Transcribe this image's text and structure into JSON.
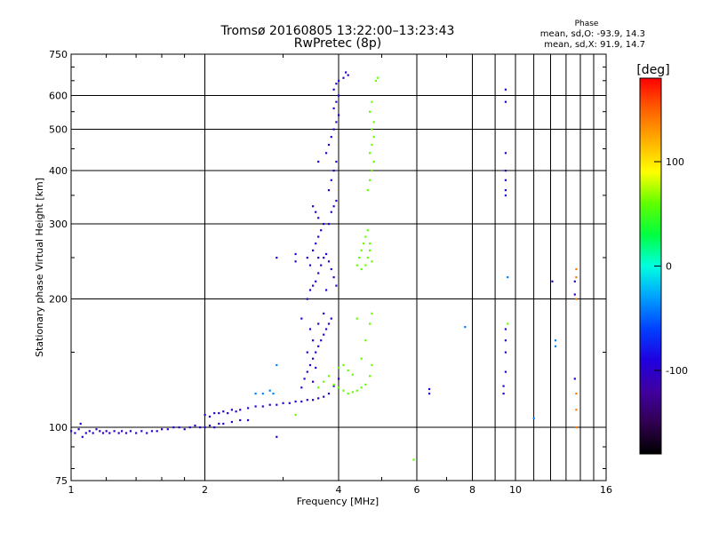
{
  "chart_data": {
    "type": "scatter",
    "title": "Tromsø 20160805 13:22:00–13:23:43",
    "subtitle": "RwPretec (8p)",
    "xlabel": "Frequency [MHz]",
    "ylabel": "Stationary phase Virtual Height [km]",
    "x_scale": "log",
    "y_scale": "log",
    "xlim": [
      1,
      16
    ],
    "ylim": [
      75,
      750
    ],
    "x_ticks": [
      1,
      2,
      4,
      6,
      8,
      10,
      16
    ],
    "x_minor_ticks": [
      9,
      11,
      12,
      13,
      14,
      15
    ],
    "y_ticks": [
      75,
      100,
      200,
      300,
      400,
      500,
      600,
      750
    ],
    "grid": true,
    "phase_stats": {
      "header": "Phase",
      "line_o": "mean, sd,O: -93.9, 14.3",
      "line_x": "mean, sd,X:  91.9, 14.7"
    },
    "colorbar": {
      "label": "[deg]",
      "range": [
        -180,
        180
      ],
      "ticks": [
        -100,
        0,
        100
      ],
      "colors": [
        "#000000",
        "#300050",
        "#4000a0",
        "#2000e0",
        "#0040ff",
        "#00a0ff",
        "#00ffe0",
        "#00ff40",
        "#60ff00",
        "#ffff00",
        "#ffb000",
        "#ff6000",
        "#ff0000"
      ]
    },
    "series": [
      {
        "phase": -100,
        "points": [
          [
            1.0,
            98
          ],
          [
            1.02,
            97
          ],
          [
            1.04,
            99
          ],
          [
            1.05,
            102
          ],
          [
            1.06,
            95
          ],
          [
            1.08,
            97
          ],
          [
            1.1,
            98
          ],
          [
            1.12,
            97
          ],
          [
            1.14,
            99
          ],
          [
            1.16,
            98
          ],
          [
            1.18,
            97
          ],
          [
            1.2,
            98
          ],
          [
            1.22,
            97
          ],
          [
            1.25,
            98
          ],
          [
            1.28,
            97
          ],
          [
            1.3,
            98
          ],
          [
            1.33,
            97
          ],
          [
            1.36,
            98
          ],
          [
            1.4,
            97
          ],
          [
            1.44,
            98
          ],
          [
            1.48,
            97
          ],
          [
            1.52,
            98
          ],
          [
            1.56,
            98
          ],
          [
            1.6,
            99
          ],
          [
            1.65,
            99
          ],
          [
            1.7,
            100
          ],
          [
            1.75,
            100
          ],
          [
            1.8,
            99
          ],
          [
            1.85,
            100
          ],
          [
            1.9,
            101
          ],
          [
            1.95,
            100
          ],
          [
            2.0,
            100
          ],
          [
            2.05,
            101
          ],
          [
            2.1,
            100
          ],
          [
            2.15,
            102
          ],
          [
            2.2,
            102
          ],
          [
            2.3,
            103
          ],
          [
            2.4,
            104
          ],
          [
            2.5,
            104
          ],
          [
            2.0,
            107
          ],
          [
            2.05,
            106
          ],
          [
            2.1,
            108
          ],
          [
            2.15,
            108
          ],
          [
            2.2,
            109
          ],
          [
            2.25,
            108
          ],
          [
            2.3,
            110
          ],
          [
            2.35,
            109
          ],
          [
            2.4,
            110
          ],
          [
            2.5,
            111
          ],
          [
            2.6,
            112
          ],
          [
            2.7,
            112
          ],
          [
            2.8,
            113
          ],
          [
            2.9,
            113
          ],
          [
            3.0,
            114
          ],
          [
            3.1,
            114
          ],
          [
            3.2,
            115
          ],
          [
            3.3,
            115
          ],
          [
            3.4,
            116
          ],
          [
            3.5,
            116
          ],
          [
            3.6,
            117
          ],
          [
            3.7,
            118
          ],
          [
            3.8,
            120
          ],
          [
            3.9,
            125
          ],
          [
            4.0,
            130
          ],
          [
            3.3,
            124
          ],
          [
            3.35,
            130
          ],
          [
            3.4,
            135
          ],
          [
            3.45,
            140
          ],
          [
            3.5,
            145
          ],
          [
            3.55,
            150
          ],
          [
            3.6,
            155
          ],
          [
            3.65,
            160
          ],
          [
            3.7,
            165
          ],
          [
            3.75,
            170
          ],
          [
            3.8,
            175
          ],
          [
            3.85,
            180
          ],
          [
            3.4,
            150
          ],
          [
            3.5,
            160
          ],
          [
            3.45,
            170
          ],
          [
            3.3,
            180
          ],
          [
            3.6,
            175
          ],
          [
            3.55,
            138
          ],
          [
            3.5,
            128
          ],
          [
            3.7,
            185
          ],
          [
            3.4,
            200
          ],
          [
            3.45,
            210
          ],
          [
            3.5,
            215
          ],
          [
            3.55,
            220
          ],
          [
            3.6,
            230
          ],
          [
            3.65,
            240
          ],
          [
            3.7,
            250
          ],
          [
            3.75,
            255
          ],
          [
            3.8,
            245
          ],
          [
            3.85,
            235
          ],
          [
            3.9,
            225
          ],
          [
            3.95,
            215
          ],
          [
            3.5,
            260
          ],
          [
            3.55,
            270
          ],
          [
            3.6,
            280
          ],
          [
            3.65,
            290
          ],
          [
            3.7,
            300
          ],
          [
            3.6,
            310
          ],
          [
            3.55,
            320
          ],
          [
            3.5,
            330
          ],
          [
            3.6,
            250
          ],
          [
            3.4,
            250
          ],
          [
            3.45,
            240
          ],
          [
            3.75,
            210
          ],
          [
            3.8,
            300
          ],
          [
            3.85,
            320
          ],
          [
            3.9,
            330
          ],
          [
            3.95,
            340
          ],
          [
            3.8,
            360
          ],
          [
            3.85,
            380
          ],
          [
            3.9,
            400
          ],
          [
            3.95,
            420
          ],
          [
            3.75,
            440
          ],
          [
            3.8,
            460
          ],
          [
            3.85,
            480
          ],
          [
            3.9,
            500
          ],
          [
            3.95,
            520
          ],
          [
            4.0,
            540
          ],
          [
            3.9,
            560
          ],
          [
            3.95,
            580
          ],
          [
            4.0,
            600
          ],
          [
            3.9,
            620
          ],
          [
            3.95,
            640
          ],
          [
            4.0,
            650
          ],
          [
            4.1,
            660
          ],
          [
            4.2,
            670
          ],
          [
            4.15,
            680
          ],
          [
            3.6,
            420
          ],
          [
            9.5,
            620
          ],
          [
            9.5,
            580
          ],
          [
            9.5,
            440
          ],
          [
            9.5,
            400
          ],
          [
            9.5,
            380
          ],
          [
            9.5,
            360
          ],
          [
            9.5,
            350
          ],
          [
            9.5,
            170
          ],
          [
            9.5,
            160
          ],
          [
            9.5,
            150
          ],
          [
            9.5,
            135
          ],
          [
            9.4,
            125
          ],
          [
            9.4,
            120
          ],
          [
            6.4,
            123
          ],
          [
            6.4,
            120
          ],
          [
            12.1,
            220
          ],
          [
            13.6,
            220
          ],
          [
            13.6,
            205
          ],
          [
            13.6,
            130
          ],
          [
            2.9,
            250
          ],
          [
            2.9,
            95
          ],
          [
            3.2,
            255
          ],
          [
            3.2,
            245
          ]
        ]
      },
      {
        "phase": -40,
        "points": [
          [
            2.6,
            120
          ],
          [
            2.7,
            120
          ],
          [
            2.8,
            122
          ],
          [
            2.85,
            120
          ],
          [
            11.0,
            105
          ],
          [
            12.3,
            160
          ],
          [
            12.3,
            155
          ],
          [
            7.7,
            172
          ],
          [
            9.6,
            225
          ],
          [
            2.9,
            140
          ]
        ]
      },
      {
        "phase": 60,
        "points": [
          [
            3.2,
            107
          ],
          [
            3.6,
            124
          ],
          [
            3.7,
            128
          ],
          [
            3.8,
            132
          ],
          [
            3.9,
            126
          ],
          [
            4.0,
            124
          ],
          [
            4.1,
            122
          ],
          [
            4.2,
            120
          ],
          [
            4.3,
            121
          ],
          [
            4.4,
            122
          ],
          [
            4.5,
            124
          ],
          [
            4.6,
            126
          ],
          [
            4.7,
            132
          ],
          [
            4.75,
            140
          ],
          [
            4.0,
            138
          ],
          [
            4.1,
            140
          ],
          [
            4.2,
            136
          ],
          [
            4.3,
            133
          ],
          [
            4.5,
            145
          ],
          [
            4.6,
            160
          ],
          [
            4.7,
            175
          ],
          [
            4.75,
            185
          ],
          [
            4.4,
            180
          ],
          [
            4.4,
            240
          ],
          [
            4.45,
            250
          ],
          [
            4.5,
            260
          ],
          [
            4.55,
            270
          ],
          [
            4.6,
            280
          ],
          [
            4.65,
            290
          ],
          [
            4.7,
            260
          ],
          [
            4.75,
            245
          ],
          [
            4.5,
            235
          ],
          [
            4.6,
            240
          ],
          [
            4.65,
            250
          ],
          [
            4.7,
            270
          ],
          [
            4.65,
            360
          ],
          [
            4.7,
            380
          ],
          [
            4.75,
            400
          ],
          [
            4.8,
            420
          ],
          [
            4.7,
            440
          ],
          [
            4.75,
            460
          ],
          [
            4.8,
            480
          ],
          [
            4.75,
            500
          ],
          [
            4.8,
            520
          ],
          [
            4.7,
            550
          ],
          [
            4.75,
            580
          ],
          [
            4.85,
            650
          ],
          [
            4.9,
            660
          ],
          [
            5.9,
            84
          ],
          [
            9.6,
            175
          ]
        ]
      },
      {
        "phase": 140,
        "points": [
          [
            13.7,
            235
          ],
          [
            13.7,
            225
          ],
          [
            13.7,
            200
          ],
          [
            13.7,
            120
          ],
          [
            13.7,
            110
          ],
          [
            13.7,
            100
          ]
        ]
      }
    ]
  }
}
